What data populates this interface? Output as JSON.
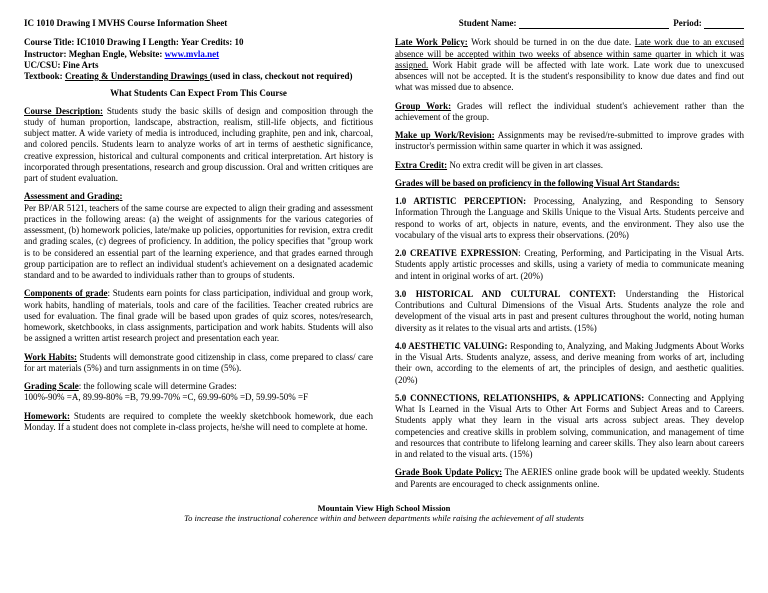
{
  "header": {
    "title": "IC 1010 Drawing I MVHS Course Information Sheet",
    "student_label": "Student Name:",
    "period_label": "Period:"
  },
  "courseInfo": {
    "line1_pre": "Course Title: IC1010  Drawing I    Length: Year     Credits: 10",
    "line2_pre": "Instructor: Meghan Engle, Website: ",
    "website": "www.mvla.net",
    "line3": "UC/CSU: Fine Arts",
    "line4_pre": "Textbook: ",
    "line4_u": "Creating & Understanding Drawings ",
    "line4_post": "(used in class, checkout not required)"
  },
  "band": "What Students Can Expect From This Course",
  "left": {
    "desc_label": "Course Description:",
    "desc_body": " Students study the basic skills of design and composition through the study of human proportion, landscape, abstraction, realism, still-life objects, and fictitious subject matter. A wide variety of media is introduced, including graphite, pen and ink, charcoal, and colored pencils. Students learn to analyze works of art in terms of aesthetic significance, creative expression, historical and cultural components and critical interpretation. Art history is incorporated through presentations, research and group discussion. Oral and written critiques are part of student evaluation.",
    "assess_label": "Assessment and Grading:",
    "assess_body": "Per BP/AR 5121, teachers of the same course are expected to align their grading and assessment practices in the following areas: (a) the weight of assignments for the various categories of assessment, (b) homework policies, late/make up policies, opportunities for revision, extra credit and grading scales, (c) degrees of proficiency.  In addition, the policy specifies that \"group work is to be considered an essential part of the learning experience, and that grades earned through group participation are to reflect an individual student's achievement on a designated academic standard and to be awarded to individuals rather than to groups of students.",
    "comp_label": "Components of grade",
    "comp_body": ": Students earn points for class participation, individual and group work, work habits, handling of materials, tools and care of the facilities. Teacher created rubrics are used for evaluation. The final grade will be based upon grades of quiz scores, notes/research, homework, sketchbooks, in class assignments, participation and work habits. Students will also be assigned a written artist research project and presentation each year.",
    "work_label": "Work Habits:",
    "work_body": "  Students will demonstrate good citizenship in class, come prepared to class/ care for art materials (5%) and turn assignments in on time (5%).",
    "scale_label": "Grading Scale",
    "scale_intro": ": the following scale will determine Grades:",
    "scale_vals": "100%-90% =A, 89.99-80% =B, 79.99-70% =C, 69.99-60% =D, 59.99-50% =F",
    "hw_label": "Homework:",
    "hw_body": " Students are required to complete the weekly sketchbook homework, due each Monday. If a student does not complete in-class projects, he/she will need to complete at home."
  },
  "right": {
    "late_label": "Late Work Policy:",
    "late_body1": " Work should be turned in on the due date. ",
    "late_u": "Late work due to an excused absence will be accepted within two weeks of absence within same quarter in which it was assigned.",
    "late_body2": " Work Habit grade will be affected with late work. Late work due to unexcused absences will not be accepted. It is the student's responsibility to know due dates and find out what was missed due to absence.",
    "group_label": "Group Work:",
    "group_body": "  Grades will reflect the individual student's achievement rather than the achievement of the group.",
    "makeup_label": "Make up Work/Revision:",
    "makeup_body": " Assignments may be revised/re-submitted to improve grades with instructor's permission within same quarter in which it was assigned.",
    "extra_label": "Extra Credit:",
    "extra_body": "  No extra credit will be given in art classes.",
    "standards_heading": "Grades will be based on proficiency in the following Visual Art Standards:",
    "s1_label": "1.0 ARTISTIC PERCEPTION:",
    "s1_body": " Processing, Analyzing, and Responding to Sensory Information Through the Language and Skills Unique to the Visual Arts. Students perceive and respond to works of art, objects in nature, events, and the environment. They also use the vocabulary of the visual arts to express their observations. (20%)",
    "s2_label": "2.0 CREATIVE EXPRESSION",
    "s2_body": ": Creating, Performing, and Participating in the Visual Arts. Students apply artistic processes and skills, using a variety of media to communicate meaning and intent in original works of art. (20%)",
    "s3_label": "3.0 HISTORICAL AND CULTURAL CONTEXT:",
    "s3_body": " Understanding the Historical Contributions and Cultural Dimensions of the Visual Arts. Students analyze the role and development of the visual arts in past and present cultures throughout the world, noting human diversity as it relates to the visual arts and artists. (15%)",
    "s4_label": "4.0 AESTHETIC VALUING:",
    "s4_body": " Responding to, Analyzing, and Making Judgments About Works in the Visual Arts. Students analyze, assess, and derive meaning from works of art, including their own, according to the elements of art, the principles of design, and aesthetic qualities. (20%)",
    "s5_label": "5.0 CONNECTIONS, RELATIONSHIPS, & APPLICATIONS:",
    "s5_body": " Connecting and Applying What Is Learned in the Visual Arts to Other Art Forms and Subject Areas and to Careers. Students apply what they learn in the visual arts across subject areas. They develop competencies and creative skills in problem solving, communication, and management of time and resources that contribute to lifelong learning and career skills. They also learn about careers in and related to the visual arts. (15%)",
    "gb_label": "Grade Book Update Policy:",
    "gb_body": "  The AERIES online grade book will be updated weekly. Students and Parents are encouraged to check assignments online."
  },
  "footer": {
    "mission": "Mountain View High School Mission",
    "tag": "To increase the instructional coherence within and between departments while raising the achievement of all students"
  }
}
